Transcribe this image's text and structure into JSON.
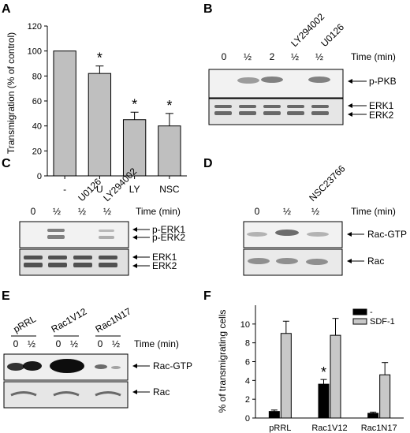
{
  "panels": {
    "A": {
      "letter": "A",
      "chart_data": {
        "type": "bar",
        "categories": [
          "-",
          "U",
          "LY",
          "NSC"
        ],
        "values": [
          100,
          82,
          45,
          40
        ],
        "errors": [
          0,
          6,
          6,
          10
        ],
        "significant": [
          false,
          true,
          true,
          true
        ],
        "significance_marker": "*",
        "ylabel": "Transmigration (% of control)",
        "ylim": [
          0,
          120
        ],
        "yticks": [
          0,
          20,
          40,
          60,
          80,
          100,
          120
        ],
        "bar_color": "#bfbfbf"
      }
    },
    "B": {
      "letter": "B",
      "lanes": [
        "0",
        "½",
        "2",
        "½",
        "½"
      ],
      "treatments": [
        "LY294002",
        "U0126"
      ],
      "time_label": "Time (min)",
      "blot_labels": [
        "p-PKB",
        "ERK1",
        "ERK2"
      ]
    },
    "C": {
      "letter": "C",
      "lanes": [
        "0",
        "½",
        "½",
        "½"
      ],
      "treatments": [
        "U0126",
        "LY294002"
      ],
      "time_label": "Time (min)",
      "blot_labels": [
        "p-ERK1",
        "p-ERK2",
        "ERK1",
        "ERK2"
      ]
    },
    "D": {
      "letter": "D",
      "lanes": [
        "0",
        "½",
        "½"
      ],
      "treatments": [
        "NSC23766"
      ],
      "time_label": "Time (min)",
      "blot_labels": [
        "Rac-GTP",
        "Rac"
      ]
    },
    "E": {
      "letter": "E",
      "groups": [
        "pRRL",
        "Rac1V12",
        "Rac1N17"
      ],
      "lanes": [
        "0",
        "½",
        "0",
        "½",
        "0",
        "½"
      ],
      "time_label": "Time (min)",
      "blot_labels": [
        "Rac-GTP",
        "Rac"
      ]
    },
    "F": {
      "letter": "F",
      "chart_data": {
        "type": "bar",
        "categories": [
          "pRRL",
          "Rac1V12",
          "Rac1N17"
        ],
        "series": [
          {
            "name": "-",
            "values": [
              0.7,
              3.6,
              0.5
            ],
            "errors": [
              0.15,
              0.5,
              0.12
            ],
            "color": "#000000"
          },
          {
            "name": "SDF-1",
            "values": [
              9.0,
              8.8,
              4.6
            ],
            "errors": [
              1.3,
              1.8,
              1.3
            ],
            "color": "#c8c8c8"
          }
        ],
        "significant": [
          false,
          true,
          false
        ],
        "significance_marker": "*",
        "ylabel": "% of transmigrating cells",
        "ylim": [
          0,
          12
        ],
        "yticks": [
          0,
          2,
          4,
          6,
          8,
          10
        ],
        "legend": "top-right"
      }
    }
  }
}
